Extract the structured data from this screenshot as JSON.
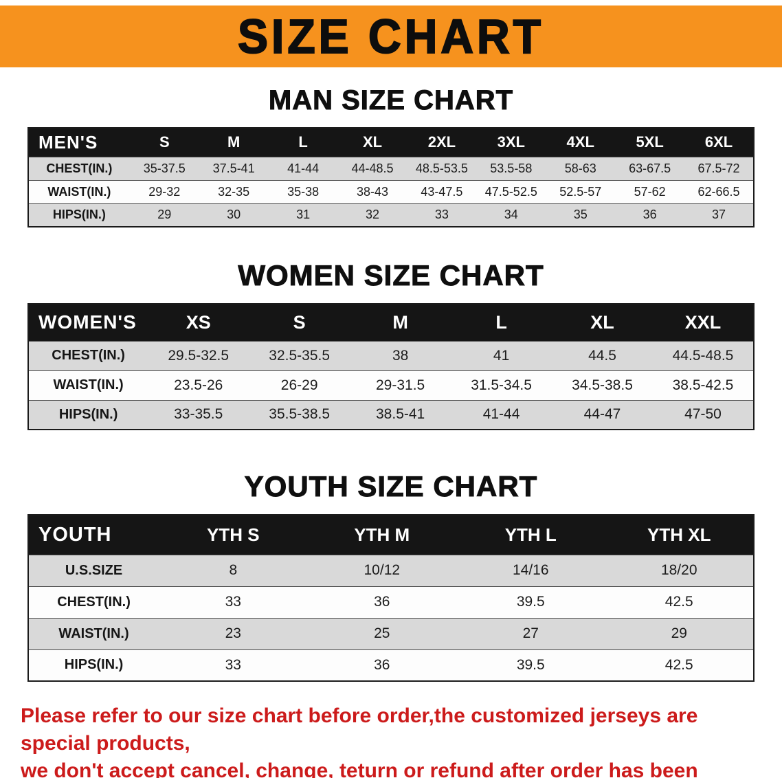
{
  "banner": {
    "title": "SIZE CHART",
    "bg_color": "#F6921E"
  },
  "sections": [
    {
      "id": "men",
      "heading": "MAN SIZE CHART",
      "table": {
        "corner": "MEN'S",
        "columns": [
          "S",
          "M",
          "L",
          "XL",
          "2XL",
          "3XL",
          "4XL",
          "5XL",
          "6XL"
        ],
        "rows": [
          {
            "label": "CHEST(IN.)",
            "values": [
              "35-37.5",
              "37.5-41",
              "41-44",
              "44-48.5",
              "48.5-53.5",
              "53.5-58",
              "58-63",
              "63-67.5",
              "67.5-72"
            ]
          },
          {
            "label": "WAIST(IN.)",
            "values": [
              "29-32",
              "32-35",
              "35-38",
              "38-43",
              "43-47.5",
              "47.5-52.5",
              "52.5-57",
              "57-62",
              "62-66.5"
            ]
          },
          {
            "label": "HIPS(IN.)",
            "values": [
              "29",
              "30",
              "31",
              "32",
              "33",
              "34",
              "35",
              "36",
              "37"
            ]
          }
        ]
      }
    },
    {
      "id": "women",
      "heading": "WOMEN SIZE CHART",
      "table": {
        "corner": "WOMEN'S",
        "columns": [
          "XS",
          "S",
          "M",
          "L",
          "XL",
          "XXL"
        ],
        "rows": [
          {
            "label": "CHEST(IN.)",
            "values": [
              "29.5-32.5",
              "32.5-35.5",
              "38",
              "41",
              "44.5",
              "44.5-48.5"
            ]
          },
          {
            "label": "WAIST(IN.)",
            "values": [
              "23.5-26",
              "26-29",
              "29-31.5",
              "31.5-34.5",
              "34.5-38.5",
              "38.5-42.5"
            ]
          },
          {
            "label": "HIPS(IN.)",
            "values": [
              "33-35.5",
              "35.5-38.5",
              "38.5-41",
              "41-44",
              "44-47",
              "47-50"
            ]
          }
        ]
      }
    },
    {
      "id": "youth",
      "heading": "YOUTH SIZE CHART",
      "table": {
        "corner": "YOUTH",
        "columns": [
          "YTH S",
          "YTH M",
          "YTH L",
          "YTH XL"
        ],
        "rows": [
          {
            "label": "U.S.SIZE",
            "values": [
              "8",
              "10/12",
              "14/16",
              "18/20"
            ]
          },
          {
            "label": "CHEST(IN.)",
            "values": [
              "33",
              "36",
              "39.5",
              "42.5"
            ]
          },
          {
            "label": "WAIST(IN.)",
            "values": [
              "23",
              "25",
              "27",
              "29"
            ]
          },
          {
            "label": "HIPS(IN.)",
            "values": [
              "33",
              "36",
              "39.5",
              "42.5"
            ]
          }
        ]
      }
    }
  ],
  "disclaimer": {
    "line1": "Please refer to our size chart before order,the customized jerseys are special products,",
    "line2": "we don't accept cancel, change, teturn or refund after order has been placed!",
    "color": "#cc1b1b"
  }
}
